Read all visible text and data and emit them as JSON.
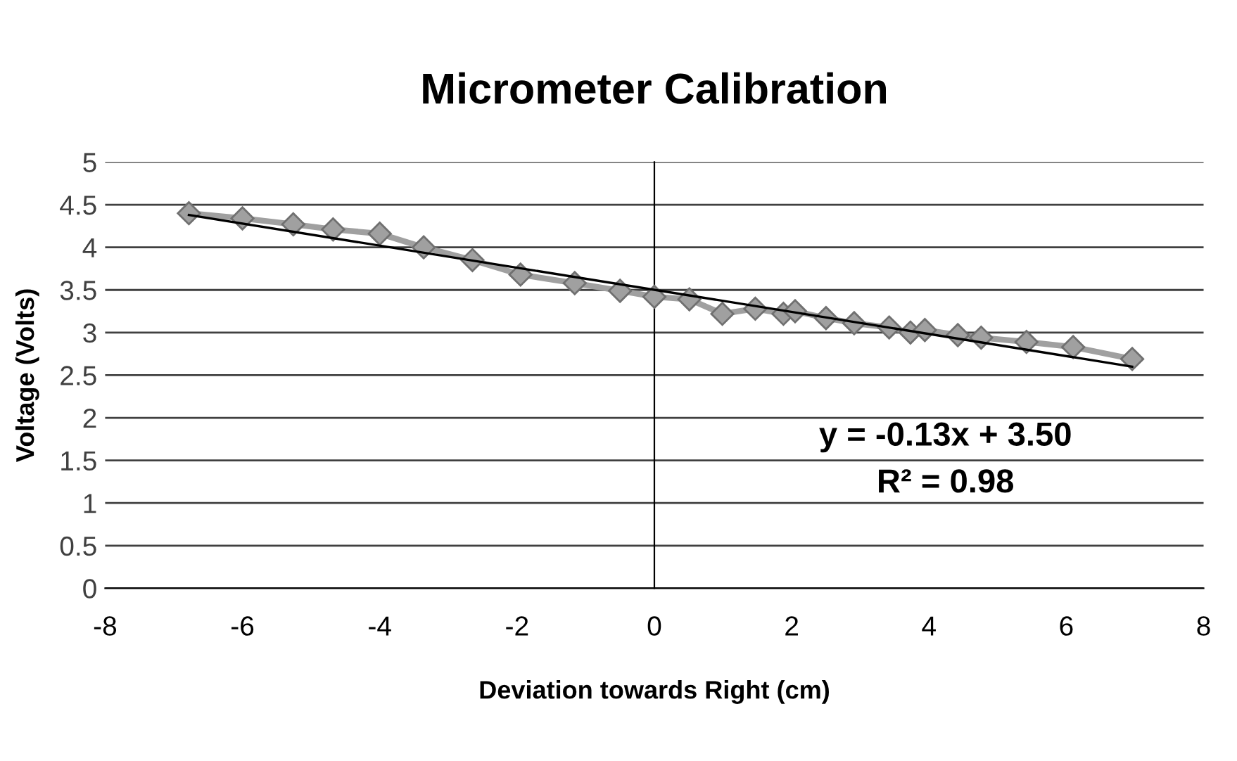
{
  "chart_data": {
    "type": "line",
    "title": "Micrometer Calibration",
    "xlabel": "Deviation towards Right (cm)",
    "ylabel": "Voltage (Volts)",
    "series": [
      {
        "color": "#a0a0a0",
        "marker": "diamond",
        "x": [
          -6.78,
          -6.0,
          -5.26,
          -4.68,
          -4.0,
          -3.36,
          -2.65,
          -1.95,
          -1.16,
          -0.5,
          0,
          0.51,
          0.99,
          1.47,
          1.88,
          2.05,
          2.5,
          2.91,
          3.42,
          3.73,
          3.94,
          4.42,
          4.76,
          5.42,
          6.1,
          6.96
        ],
        "values": [
          4.4,
          4.34,
          4.27,
          4.21,
          4.16,
          4.0,
          3.85,
          3.68,
          3.58,
          3.49,
          3.42,
          3.39,
          3.22,
          3.28,
          3.22,
          3.25,
          3.17,
          3.11,
          3.06,
          3.0,
          3.03,
          2.97,
          2.94,
          2.89,
          2.83,
          2.69
        ]
      },
      {
        "type": "line",
        "color": "#000000",
        "marker": "none",
        "x": [
          -6.78,
          6.96
        ],
        "values": [
          4.38,
          2.6
        ]
      }
    ],
    "xlim": [
      -8,
      8
    ],
    "xticks": [
      -8,
      -6,
      -4,
      -2,
      0,
      2,
      4,
      6,
      8
    ],
    "ylim": [
      0,
      5
    ],
    "yticks": [
      0,
      0.5,
      1,
      1.5,
      2,
      2.5,
      3,
      3.5,
      4,
      4.5,
      5
    ],
    "grid": "y",
    "legend": false,
    "annotations": [
      "y = -0.13x + 3.50",
      "R² = 0.98"
    ]
  }
}
